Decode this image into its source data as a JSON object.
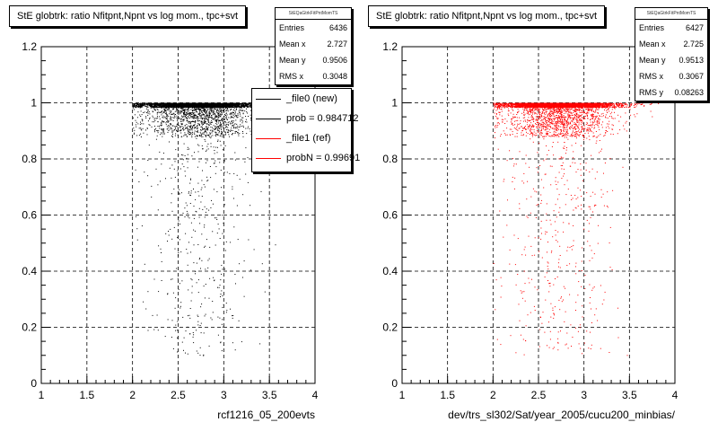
{
  "chart_data": [
    {
      "type": "scatter",
      "title": "StE globtrk: ratio Nfitpnt,Npnt vs log mom., tpc+svt",
      "xlabel": "rcf1216_05_200evts",
      "ylabel": "",
      "xlim": [
        1,
        4
      ],
      "ylim": [
        0,
        1.2
      ],
      "x_ticks": [
        "1",
        "1.5",
        "2",
        "2.5",
        "3",
        "3.5",
        "4"
      ],
      "y_ticks": [
        "0",
        "0.2",
        "0.4",
        "0.6",
        "0.8",
        "1",
        "1.2"
      ],
      "grid": true,
      "series": [
        {
          "name": "_file0 (new)",
          "color": "#000000"
        }
      ],
      "stats": {
        "name": "StEQaGtrkFitPntMomTS",
        "rows": [
          {
            "label": "Entries",
            "value": "6436"
          },
          {
            "label": "Mean x",
            "value": "2.727"
          },
          {
            "label": "Mean y",
            "value": "0.9506"
          },
          {
            "label": "RMS x",
            "value": "0.3048"
          }
        ]
      },
      "legend": {
        "placement": "top-right",
        "entries": [
          {
            "label": "_file0 (new)",
            "color": "#000000"
          },
          {
            "label": "prob = 0.984712",
            "color": "#000000"
          },
          {
            "label": "_file1 (ref)",
            "color": "#ff0000"
          },
          {
            "label": "probN = 0.99691",
            "color": "#ff0000"
          }
        ]
      }
    },
    {
      "type": "scatter",
      "title": "StE globtrk: ratio Nfitpnt,Npnt vs log mom., tpc+svt",
      "xlabel": "dev/trs_sl302/Sat/year_2005/cucu200_minbias/",
      "ylabel": "",
      "xlim": [
        1,
        4
      ],
      "ylim": [
        0,
        1.2
      ],
      "x_ticks": [
        "1",
        "1.5",
        "2",
        "2.5",
        "3",
        "3.5",
        "4"
      ],
      "y_ticks": [
        "0",
        "0.2",
        "0.4",
        "0.6",
        "0.8",
        "1",
        "1.2"
      ],
      "grid": true,
      "series": [
        {
          "name": "_file1 (ref)",
          "color": "#ff0000"
        }
      ],
      "stats": {
        "name": "StEQaGtrkFitPntMomTS",
        "rows": [
          {
            "label": "Entries",
            "value": "6427"
          },
          {
            "label": "Mean x",
            "value": "2.725"
          },
          {
            "label": "Mean y",
            "value": "0.9513"
          },
          {
            "label": "RMS x",
            "value": "0.3067"
          },
          {
            "label": "RMS y",
            "value": "0.08263"
          }
        ]
      }
    }
  ]
}
